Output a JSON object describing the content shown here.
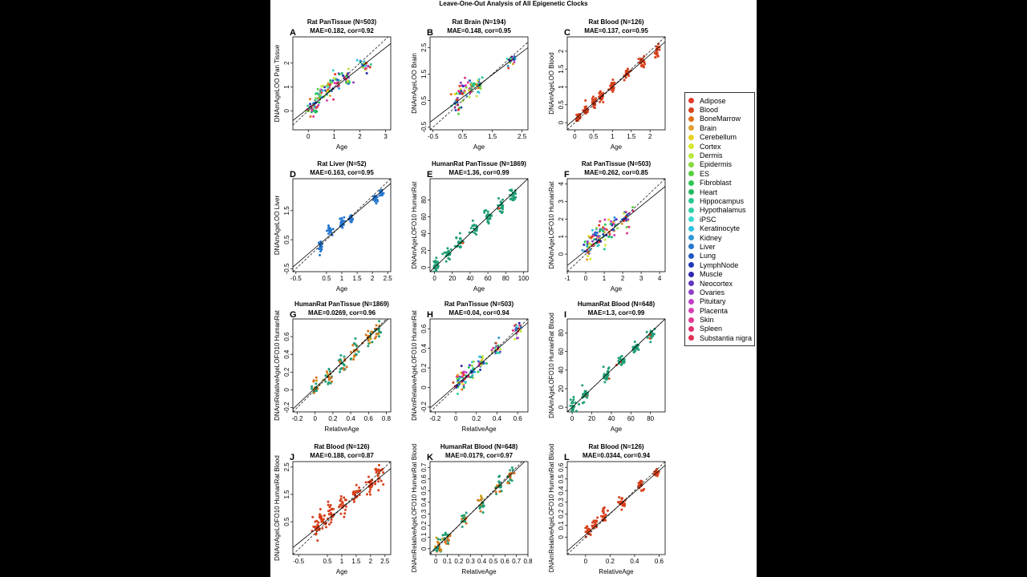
{
  "figure_title": "Leave-One-Out Analysis of All Epigenetic Clocks",
  "legend": {
    "items": [
      {
        "label": "Adipose",
        "color": "#e03a2a"
      },
      {
        "label": "Blood",
        "color": "#d6401c"
      },
      {
        "label": "BoneMarrow",
        "color": "#e07018"
      },
      {
        "label": "Brain",
        "color": "#e0a030"
      },
      {
        "label": "Cerebellum",
        "color": "#e8d020"
      },
      {
        "label": "Cortex",
        "color": "#d8e830"
      },
      {
        "label": "Dermis",
        "color": "#b8e840"
      },
      {
        "label": "Epidermis",
        "color": "#88d840"
      },
      {
        "label": "ES",
        "color": "#58d040"
      },
      {
        "label": "Fibroblast",
        "color": "#30c858"
      },
      {
        "label": "Heart",
        "color": "#20b860"
      },
      {
        "label": "Hippocampus",
        "color": "#28c890"
      },
      {
        "label": "Hypothalamus",
        "color": "#30d0a8"
      },
      {
        "label": "iPSC",
        "color": "#38d8d0"
      },
      {
        "label": "Keratinocyte",
        "color": "#30c0e0"
      },
      {
        "label": "Kidney",
        "color": "#3098d8"
      },
      {
        "label": "Liver",
        "color": "#2878d0"
      },
      {
        "label": "Lung",
        "color": "#2058c0"
      },
      {
        "label": "LymphNode",
        "color": "#2038b8"
      },
      {
        "label": "Muscle",
        "color": "#3028b0"
      },
      {
        "label": "Neocortex",
        "color": "#6038c0"
      },
      {
        "label": "Ovaries",
        "color": "#9040c8"
      },
      {
        "label": "Pituitary",
        "color": "#c040c8"
      },
      {
        "label": "Placenta",
        "color": "#d840b0"
      },
      {
        "label": "Skin",
        "color": "#e03890"
      },
      {
        "label": "Spleen",
        "color": "#e03070"
      },
      {
        "label": "Substantia nigra",
        "color": "#e03050"
      }
    ]
  },
  "chart_data": [
    {
      "id": "A",
      "type": "scatter",
      "title": "Rat PanTissue (N=503)",
      "subtitle": "MAE=0.182, cor=0.92",
      "xlabel": "Age",
      "ylabel": "DNAmAgeLOO Pan Tissue",
      "xlim": [
        -0.6,
        3.2
      ],
      "ylim": [
        -0.8,
        3.1
      ],
      "xticks": [
        0,
        1,
        2,
        3
      ],
      "yticks": [
        0,
        1,
        2
      ],
      "palette": "multi",
      "clusters": [
        [
          0.1,
          0.1
        ],
        [
          0.3,
          0.4
        ],
        [
          0.5,
          0.7
        ],
        [
          0.8,
          0.9
        ],
        [
          1.1,
          1.2
        ],
        [
          1.5,
          1.4
        ],
        [
          2.2,
          1.9
        ]
      ],
      "spread": 0.35,
      "fit": [
        0.1,
        0.85
      ]
    },
    {
      "id": "B",
      "type": "scatter",
      "title": "Rat Brain (N=194)",
      "subtitle": "MAE=0.148, cor=0.95",
      "xlabel": "Age",
      "ylabel": "DNAmAgeLOO Brain",
      "xlim": [
        -0.6,
        2.7
      ],
      "ylim": [
        -0.6,
        2.9
      ],
      "xticks": [
        -0.5,
        0.5,
        1.5,
        2.5
      ],
      "yticks": [
        -0.5,
        0.5,
        1.5,
        2.5
      ],
      "palette": "multi",
      "clusters": [
        [
          0.3,
          0.4
        ],
        [
          0.5,
          0.9
        ],
        [
          0.75,
          1.0
        ],
        [
          1.0,
          1.1
        ],
        [
          2.1,
          2.0
        ]
      ],
      "spread": 0.3,
      "fit": [
        0.2,
        0.85
      ]
    },
    {
      "id": "C",
      "type": "scatter",
      "title": "Rat Blood (N=126)",
      "subtitle": "MAE=0.137, cor=0.95",
      "xlabel": "Age",
      "ylabel": "DNAmAgeLOO Blood",
      "xlim": [
        -0.2,
        2.4
      ],
      "ylim": [
        -0.2,
        2.4
      ],
      "xticks": [
        0,
        0.5,
        1,
        1.5,
        2
      ],
      "yticks": [
        0,
        0.5,
        1,
        1.5,
        2
      ],
      "palette": "blood",
      "clusters": [
        [
          0.1,
          0.15
        ],
        [
          0.3,
          0.35
        ],
        [
          0.5,
          0.55
        ],
        [
          0.7,
          0.7
        ],
        [
          1.0,
          1.0
        ],
        [
          1.4,
          1.4
        ],
        [
          1.8,
          1.7
        ],
        [
          2.2,
          2.0
        ]
      ],
      "spread": 0.15,
      "fit": [
        0.1,
        0.9
      ]
    },
    {
      "id": "D",
      "type": "scatter",
      "title": "Rat Liver (N=52)",
      "subtitle": "MAE=0.163, cor=0.95",
      "xlabel": "Age",
      "ylabel": "DNAmAgeLOO Liver",
      "xlim": [
        -0.6,
        2.6
      ],
      "ylim": [
        -0.6,
        2.6
      ],
      "xticks": [
        -0.5,
        0.5,
        1,
        1.5,
        2,
        2.5
      ],
      "yticks": [
        -0.5,
        0.5,
        1.5
      ],
      "palette": "liver",
      "clusters": [
        [
          0.3,
          0.3
        ],
        [
          0.6,
          0.8
        ],
        [
          1.0,
          1.1
        ],
        [
          1.3,
          1.2
        ],
        [
          2.1,
          1.9
        ],
        [
          2.3,
          2.1
        ]
      ],
      "spread": 0.15,
      "fit": [
        0.1,
        0.9
      ]
    },
    {
      "id": "E",
      "type": "scatter",
      "title": "HumanRat PanTissue (N=1869)",
      "subtitle": "MAE=1.36, cor=0.99",
      "xlabel": "Age",
      "ylabel": "DNAmAgeLOFO10 HumanRat",
      "xlim": [
        -5,
        105
      ],
      "ylim": [
        -5,
        105
      ],
      "xticks": [
        0,
        20,
        40,
        60,
        80,
        100
      ],
      "yticks": [
        0,
        20,
        40,
        60,
        80
      ],
      "palette": "human",
      "clusters": [
        [
          2,
          2
        ],
        [
          15,
          15
        ],
        [
          30,
          30
        ],
        [
          45,
          45
        ],
        [
          60,
          60
        ],
        [
          75,
          72
        ],
        [
          88,
          85
        ]
      ],
      "spread": 8,
      "fit": [
        0,
        1
      ]
    },
    {
      "id": "F",
      "type": "scatter",
      "title": "Rat PanTissue (N=503)",
      "subtitle": "MAE=0.262, cor=0.85",
      "xlabel": "Age",
      "ylabel": "DNAmAgeLOFO10 HumanRat",
      "xlim": [
        -1,
        4.3
      ],
      "ylim": [
        -1,
        4.3
      ],
      "xticks": [
        -1,
        0,
        1,
        2,
        3,
        4
      ],
      "yticks": [
        0,
        1,
        2,
        3,
        4
      ],
      "palette": "multi",
      "clusters": [
        [
          0.1,
          0.3
        ],
        [
          0.4,
          0.7
        ],
        [
          0.7,
          1.0
        ],
        [
          1.0,
          1.3
        ],
        [
          1.5,
          1.6
        ],
        [
          2.2,
          2.1
        ]
      ],
      "spread": 0.55,
      "fit": [
        0.2,
        0.85
      ]
    },
    {
      "id": "G",
      "type": "scatter",
      "title": "HumanRat PanTissue (N=1869)",
      "subtitle": "MAE=0.0269, cor=0.96",
      "xlabel": "RelativeAge",
      "ylabel": "DNAmRelativeAgeLOFO10 HumanRat",
      "xlim": [
        -0.25,
        0.85
      ],
      "ylim": [
        -0.25,
        0.8
      ],
      "xticks": [
        -0.2,
        0,
        0.2,
        0.4,
        0.6,
        0.8
      ],
      "yticks": [
        -0.2,
        0,
        0.2,
        0.4,
        0.6
      ],
      "palette": "mix",
      "clusters": [
        [
          0.0,
          0.02
        ],
        [
          0.15,
          0.15
        ],
        [
          0.3,
          0.3
        ],
        [
          0.45,
          0.45
        ],
        [
          0.6,
          0.58
        ],
        [
          0.7,
          0.66
        ]
      ],
      "spread": 0.09,
      "fit": [
        0.02,
        0.95
      ]
    },
    {
      "id": "H",
      "type": "scatter",
      "title": "Rat PanTissue (N=503)",
      "subtitle": "MAE=0.04, cor=0.94",
      "xlabel": "RelativeAge",
      "ylabel": "DNAmRelativeAgeLOFO10 HumanRat",
      "xlim": [
        -0.25,
        0.7
      ],
      "ylim": [
        -0.25,
        0.7
      ],
      "xticks": [
        -0.2,
        0,
        0.2,
        0.4,
        0.6
      ],
      "yticks": [
        -0.2,
        0,
        0.2,
        0.4,
        0.6
      ],
      "palette": "multi",
      "clusters": [
        [
          0.02,
          0.04
        ],
        [
          0.08,
          0.1
        ],
        [
          0.15,
          0.15
        ],
        [
          0.25,
          0.25
        ],
        [
          0.4,
          0.38
        ],
        [
          0.6,
          0.57
        ]
      ],
      "spread": 0.08,
      "fit": [
        0.02,
        0.92
      ]
    },
    {
      "id": "I",
      "type": "scatter",
      "title": "HumanRat Blood (N=648)",
      "subtitle": "MAE=1.3, cor=0.99",
      "xlabel": "Age",
      "ylabel": "DNAmAgeLOFO10 HumanRat Blood",
      "xlim": [
        -5,
        95
      ],
      "ylim": [
        -5,
        95
      ],
      "xticks": [
        0,
        20,
        40,
        60,
        80
      ],
      "yticks": [
        0,
        20,
        40,
        60,
        80
      ],
      "palette": "humanblood",
      "clusters": [
        [
          1,
          1
        ],
        [
          13,
          14
        ],
        [
          35,
          35
        ],
        [
          50,
          50
        ],
        [
          65,
          64
        ],
        [
          80,
          78
        ]
      ],
      "spread": 7,
      "fit": [
        0,
        1
      ]
    },
    {
      "id": "J",
      "type": "scatter",
      "title": "Rat Blood (N=126)",
      "subtitle": "MAE=0.188, cor=0.87",
      "xlabel": "Age",
      "ylabel": "DNAmAgeLOFO10 HumanRat Blood",
      "xlim": [
        -0.7,
        2.7
      ],
      "ylim": [
        -0.7,
        2.7
      ],
      "xticks": [
        -0.5,
        0.5,
        1,
        1.5,
        2,
        2.5
      ],
      "yticks": [
        0.5,
        1.5,
        2.5
      ],
      "palette": "blood",
      "clusters": [
        [
          0.1,
          0.2
        ],
        [
          0.3,
          0.5
        ],
        [
          0.6,
          0.8
        ],
        [
          1.0,
          1.1
        ],
        [
          1.5,
          1.5
        ],
        [
          2.0,
          1.9
        ],
        [
          2.3,
          2.2
        ]
      ],
      "spread": 0.3,
      "fit": [
        0.15,
        0.85
      ]
    },
    {
      "id": "K",
      "type": "scatter",
      "title": "HumanRat Blood (N=648)",
      "subtitle": "MAE=0.0179, cor=0.97",
      "xlabel": "RelativeAge",
      "ylabel": "DNAmRelativeAgeLOFO10 HumanRat Blood",
      "xlim": [
        -0.05,
        0.8
      ],
      "ylim": [
        -0.05,
        0.75
      ],
      "xticks": [
        0,
        0.1,
        0.2,
        0.3,
        0.4,
        0.5,
        0.6,
        0.7,
        0.8
      ],
      "yticks": [
        0,
        0.1,
        0.2,
        0.3,
        0.4,
        0.5,
        0.6,
        0.7
      ],
      "palette": "mix",
      "clusters": [
        [
          0.02,
          0.03
        ],
        [
          0.1,
          0.1
        ],
        [
          0.25,
          0.25
        ],
        [
          0.4,
          0.4
        ],
        [
          0.55,
          0.54
        ],
        [
          0.65,
          0.62
        ]
      ],
      "spread": 0.06,
      "fit": [
        0.01,
        0.96
      ]
    },
    {
      "id": "L",
      "type": "scatter",
      "title": "Rat Blood (N=126)",
      "subtitle": "MAE=0.0344, cor=0.94",
      "xlabel": "RelativeAge",
      "ylabel": "DNAmRelativeAgeLOFO10 HumanRat Blood",
      "xlim": [
        -0.15,
        0.65
      ],
      "ylim": [
        -0.15,
        0.65
      ],
      "xticks": [
        0,
        0.2,
        0.4,
        0.6
      ],
      "yticks": [
        0,
        0.1,
        0.2,
        0.3,
        0.4,
        0.5,
        0.6
      ],
      "palette": "blood",
      "clusters": [
        [
          0.02,
          0.05
        ],
        [
          0.08,
          0.12
        ],
        [
          0.15,
          0.18
        ],
        [
          0.3,
          0.3
        ],
        [
          0.45,
          0.44
        ],
        [
          0.58,
          0.55
        ]
      ],
      "spread": 0.05,
      "fit": [
        0.02,
        0.92
      ]
    }
  ]
}
